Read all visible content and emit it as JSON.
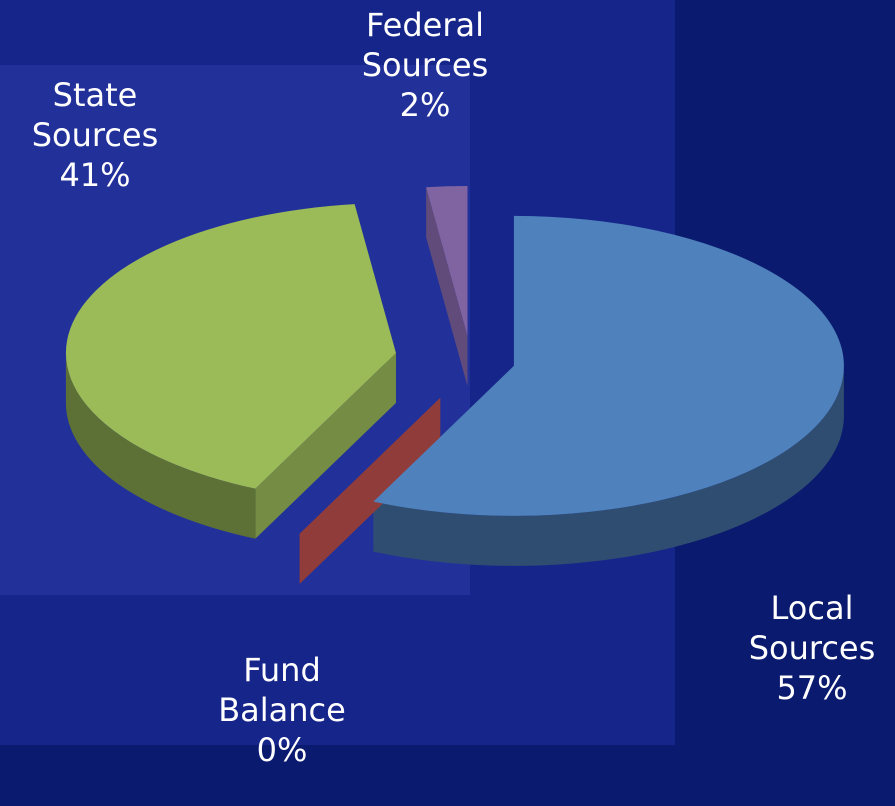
{
  "chart_data": {
    "type": "pie3d",
    "categories": [
      "Local Sources",
      "Fund Balance",
      "State Sources",
      "Federal Sources"
    ],
    "values": [
      57,
      0,
      41,
      2
    ],
    "value_labels": [
      "57%",
      "0%",
      "41%",
      "2%"
    ],
    "colors": [
      "#4f81bd",
      "#c0504d",
      "#9bbb59",
      "#8064a2"
    ]
  }
}
